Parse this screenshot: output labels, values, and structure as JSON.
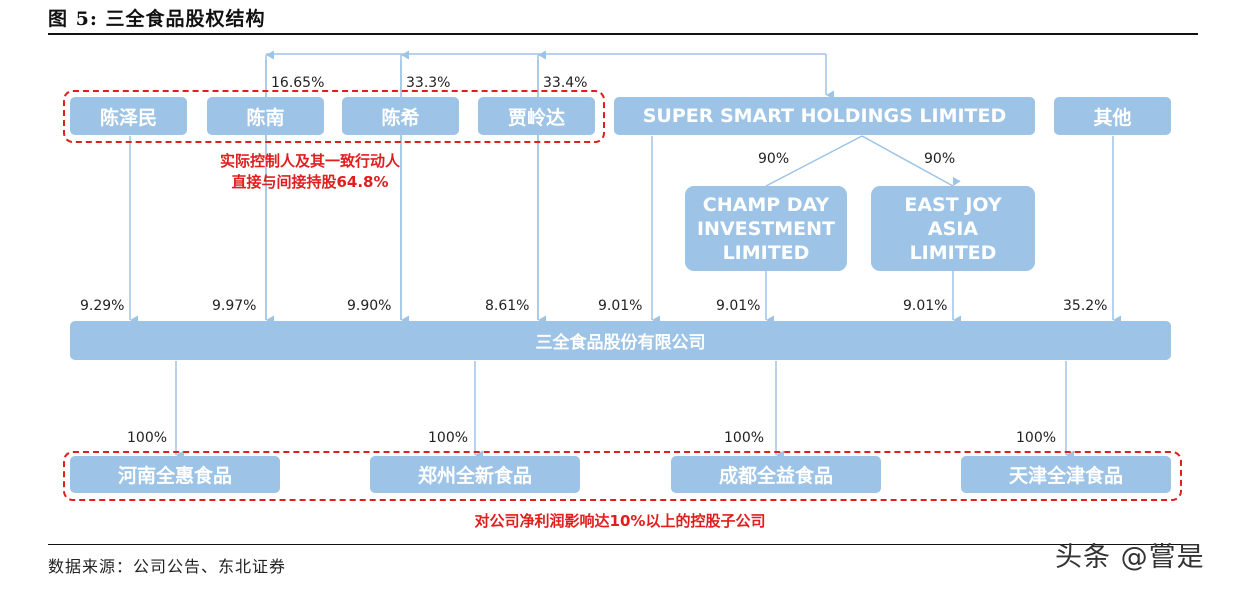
{
  "figure": {
    "title": "图 5: 三全食品股权结构",
    "source": "数据来源：公司公告、东北证券",
    "watermark": "头条 @嘗是"
  },
  "controllers": [
    {
      "name": "陈泽民",
      "pct_to_company": "9.29%"
    },
    {
      "name": "陈南",
      "pct_to_super": "16.65%",
      "pct_to_company": "9.97%"
    },
    {
      "name": "陈希",
      "pct_to_super": "33.3%",
      "pct_to_company": "9.90%"
    },
    {
      "name": "贾岭达",
      "pct_to_super": "33.4%",
      "pct_to_company": "8.61%"
    }
  ],
  "controllers_note": {
    "line1": "实际控制人及其一致行动人",
    "line2": "直接与间接持股64.8%"
  },
  "super_smart": {
    "name": "SUPER SMART HOLDINGS LIMITED",
    "pct_to_company": "9.01%"
  },
  "others": {
    "name": "其他",
    "pct_to_company": "35.2%"
  },
  "champ_day": {
    "line1": "CHAMP DAY",
    "line2": "INVESTMENT",
    "line3": "LIMITED",
    "pct_from_super": "90%",
    "pct_to_company": "9.01%"
  },
  "east_joy": {
    "line1": "EAST JOY",
    "line2": "ASIA",
    "line3": "LIMITED",
    "pct_from_super": "90%",
    "pct_to_company": "9.01%"
  },
  "company": {
    "name": "三全食品股份有限公司"
  },
  "subsidiaries": [
    {
      "name": "河南全惠食品",
      "pct": "100%"
    },
    {
      "name": "郑州全新食品",
      "pct": "100%"
    },
    {
      "name": "成都全益食品",
      "pct": "100%"
    },
    {
      "name": "天津全津食品",
      "pct": "100%"
    }
  ],
  "subsidiaries_note": "对公司净利润影响达10%以上的控股子公司",
  "colors": {
    "box": "#9dc3e6",
    "line": "#9dc3e6",
    "highlight": "#e01e1e"
  }
}
